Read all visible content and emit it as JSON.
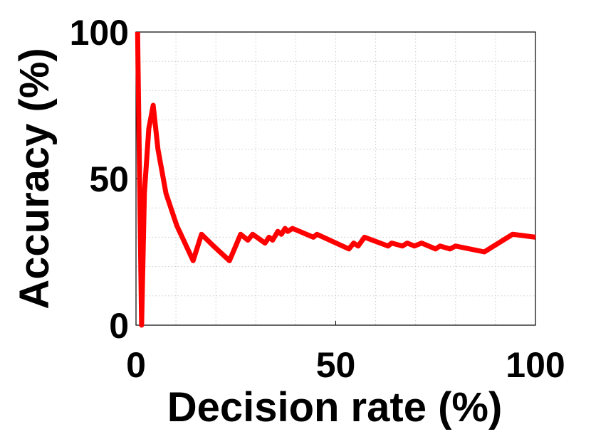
{
  "chart_data": {
    "type": "line",
    "xlabel": "Decision rate (%)",
    "ylabel": "Accuracy (%)",
    "x": [
      0.4,
      1.4,
      2.1,
      3.2,
      4.3,
      5.5,
      7.5,
      10.2,
      14.3,
      16.4,
      19.4,
      23.4,
      26.2,
      28.0,
      29.2,
      32.3,
      33.3,
      34.2,
      35.5,
      36.4,
      37.3,
      38.0,
      39.2,
      44.4,
      45.3,
      53.3,
      54.5,
      55.6,
      57.2,
      63.1,
      64.0,
      66.7,
      67.9,
      69.7,
      71.5,
      75.0,
      76.1,
      78.6,
      80.0,
      87.2,
      94.3,
      100
    ],
    "series": [
      {
        "color": "#ff0000",
        "values": [
          100,
          0,
          45,
          67,
          75,
          60,
          45,
          34,
          22,
          31,
          27,
          22,
          31,
          29,
          31,
          28,
          30,
          29,
          32,
          31,
          33,
          32,
          33,
          30,
          31,
          26,
          28,
          27,
          30,
          27,
          28,
          27,
          28,
          27,
          28,
          26,
          27,
          26,
          27,
          25,
          31,
          30
        ]
      }
    ],
    "xlim": [
      0,
      100
    ],
    "ylim": [
      0,
      100
    ],
    "xticks": [
      0,
      50,
      100
    ],
    "yticks": [
      0,
      50,
      100
    ],
    "minor_xticks": [
      10,
      20,
      30,
      40,
      60,
      70,
      80,
      90
    ],
    "minor_yticks": [
      10,
      20,
      30,
      40,
      60,
      70,
      80,
      90
    ],
    "grid": true
  }
}
